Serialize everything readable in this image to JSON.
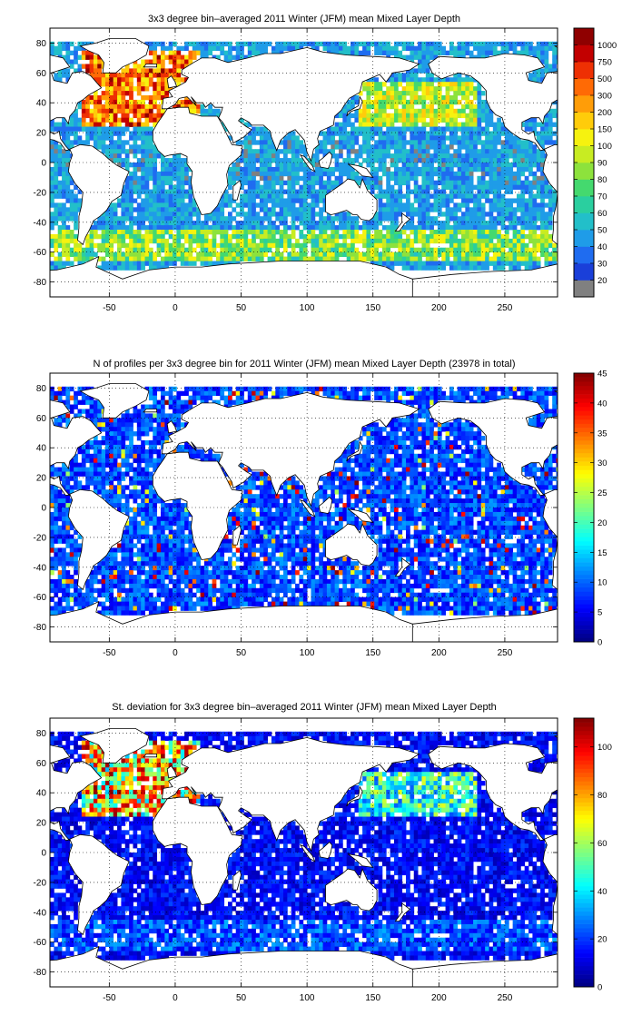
{
  "chart_data": [
    {
      "type": "heatmap",
      "title": "3x3 degree bin–averaged 2011 Winter (JFM) mean Mixed Layer Depth",
      "xlabel": "",
      "ylabel": "",
      "xlim": [
        -95,
        290
      ],
      "ylim": [
        -90,
        90
      ],
      "x_ticks": [
        -50,
        0,
        50,
        100,
        150,
        200,
        250
      ],
      "y_ticks": [
        80,
        60,
        40,
        20,
        0,
        -20,
        -40,
        -60,
        -80
      ],
      "grid": true,
      "bin_size_deg": 3,
      "colorbar": {
        "scale": "categorical",
        "tick_labels": [
          "20",
          "30",
          "40",
          "50",
          "60",
          "70",
          "80",
          "90",
          "100",
          "150",
          "200",
          "300",
          "500",
          "750",
          "1000"
        ],
        "colors": [
          "#808080",
          "#1a3fd9",
          "#1f6cf0",
          "#1f9ce8",
          "#22bfc9",
          "#2acf9f",
          "#44d96e",
          "#8de23c",
          "#c8ec22",
          "#f6f20f",
          "#ffcc0a",
          "#ff9d08",
          "#ff6a05",
          "#ee3003",
          "#c20000",
          "#8f0000"
        ]
      }
    },
    {
      "type": "heatmap",
      "title": "N of profiles per 3x3 degree bin for 2011 Winter (JFM) mean Mixed Layer Depth  (23978 in total)",
      "xlabel": "",
      "ylabel": "",
      "xlim": [
        -95,
        290
      ],
      "ylim": [
        -90,
        90
      ],
      "x_ticks": [
        -50,
        0,
        50,
        100,
        150,
        200,
        250
      ],
      "y_ticks": [
        80,
        60,
        40,
        20,
        0,
        -20,
        -40,
        -60,
        -80
      ],
      "grid": true,
      "bin_size_deg": 3,
      "total_profiles": 23978,
      "colorbar": {
        "scale": "linear",
        "min": 0,
        "max": 45,
        "ticks": [
          0,
          5,
          10,
          15,
          20,
          25,
          30,
          35,
          40,
          45
        ],
        "colormap": "jet"
      }
    },
    {
      "type": "heatmap",
      "title": "St. deviation for 3x3 degree bin–averaged 2011 Winter (JFM) mean Mixed Layer Depth",
      "xlabel": "",
      "ylabel": "",
      "xlim": [
        -95,
        290
      ],
      "ylim": [
        -90,
        90
      ],
      "x_ticks": [
        -50,
        0,
        50,
        100,
        150,
        200,
        250
      ],
      "y_ticks": [
        80,
        60,
        40,
        20,
        0,
        -20,
        -40,
        -60,
        -80
      ],
      "grid": true,
      "bin_size_deg": 3,
      "colorbar": {
        "scale": "linear",
        "min": 0,
        "max": 112,
        "ticks": [
          0,
          20,
          40,
          60,
          80,
          100
        ],
        "colormap": "jet"
      }
    }
  ]
}
